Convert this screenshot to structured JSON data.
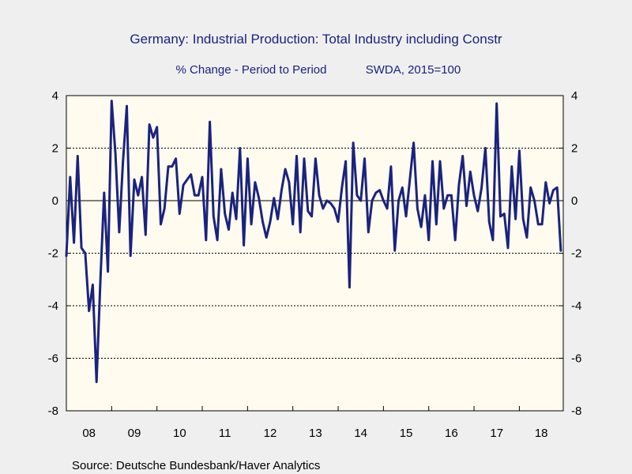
{
  "chart_data": {
    "type": "line",
    "title": "Germany: Industrial Production: Total Industry including Constr",
    "subtitle_left": "% Change - Period to Period",
    "subtitle_right": "SWDA, 2015=100",
    "source": "Source:  Deutsche Bundesbank/Haver Analytics",
    "ylim": [
      -8,
      4
    ],
    "yticks": [
      "4",
      "2",
      "0",
      "-2",
      "-4",
      "-6",
      "-8"
    ],
    "ytick_values": [
      4,
      2,
      0,
      -2,
      -4,
      -6,
      -8
    ],
    "xlim": [
      2008.0,
      2018.97
    ],
    "xtick_labels": [
      "08",
      "09",
      "10",
      "11",
      "12",
      "13",
      "14",
      "15",
      "16",
      "17",
      "18"
    ],
    "xtick_years": [
      2008,
      2009,
      2010,
      2011,
      2012,
      2013,
      2014,
      2015,
      2016,
      2017,
      2018
    ],
    "gridlines": [
      2,
      -2,
      -4,
      -6
    ],
    "zero_line": 0,
    "colors": {
      "line": "#1a237e",
      "plot_bg": "#fffbee",
      "page_bg": "#efeff0"
    },
    "series": [
      {
        "start": "2008-01",
        "frequency": "monthly",
        "values": [
          -2.1,
          0.9,
          -1.6,
          1.7,
          -1.8,
          -2.0,
          -4.2,
          -3.2,
          -6.9,
          -3.1,
          0.3,
          -2.7,
          3.8,
          1.8,
          -1.2,
          1.5,
          3.6,
          -2.1,
          0.8,
          0.2,
          0.9,
          -1.3,
          2.9,
          2.4,
          2.8,
          -0.9,
          -0.3,
          1.3,
          1.3,
          1.6,
          -0.5,
          0.6,
          0.8,
          1.0,
          0.2,
          0.2,
          0.9,
          -1.5,
          3.0,
          -0.6,
          -1.5,
          1.2,
          -0.5,
          -1.1,
          0.3,
          -0.7,
          2.0,
          -1.7,
          1.6,
          -0.9,
          0.7,
          0.1,
          -0.8,
          -1.4,
          -0.8,
          0.1,
          -0.7,
          0.4,
          1.2,
          0.7,
          -0.9,
          1.7,
          -1.2,
          1.6,
          -0.4,
          -0.6,
          1.6,
          0.2,
          -0.3,
          0.0,
          -0.1,
          -0.3,
          -0.8,
          0.5,
          1.5,
          -3.3,
          2.2,
          0.2,
          0.0,
          1.6,
          -1.2,
          0.0,
          0.3,
          0.4,
          0.0,
          -0.3,
          1.3,
          -1.9,
          0.0,
          0.5,
          -0.6,
          0.8,
          2.2,
          -0.3,
          -1.0,
          0.2,
          -1.5,
          1.5,
          -0.9,
          1.5,
          -0.3,
          0.2,
          0.2,
          -1.5,
          0.6,
          1.7,
          -0.2,
          1.1,
          0.2,
          -0.4,
          0.5,
          2.0,
          -0.8,
          -1.5,
          3.7,
          -0.6,
          -0.5,
          -1.8,
          1.3,
          -0.7,
          1.9,
          -0.7,
          -1.4,
          0.5,
          0.0,
          -0.9,
          -0.9,
          0.7,
          -0.1,
          0.4,
          0.5,
          -1.9
        ]
      }
    ]
  }
}
